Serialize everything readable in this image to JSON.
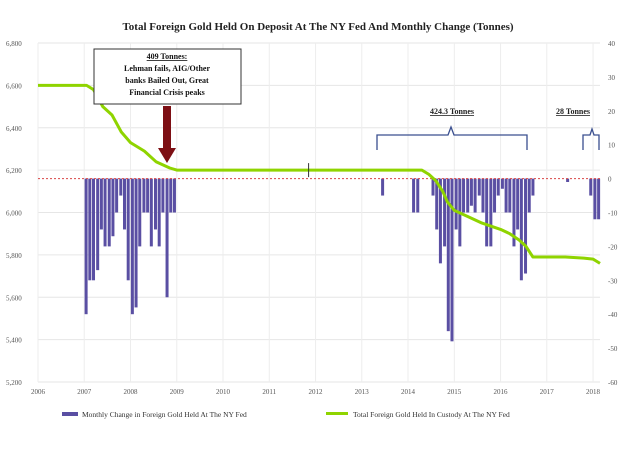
{
  "chart_data": {
    "type": "bar",
    "title": "Total Foreign Gold Held On Deposit At The NY Fed And Monthly Change (Tonnes)",
    "x_axis": {
      "range": [
        2006,
        2018.15
      ],
      "ticks": [
        "2006",
        "2007",
        "2008",
        "2009",
        "2010",
        "2011",
        "2012",
        "2013",
        "2014",
        "2015",
        "2016",
        "2017",
        "2018"
      ]
    },
    "left_axis": {
      "range": [
        5200,
        6800
      ],
      "ticks": [
        "5,200",
        "5,400",
        "5,600",
        "5,800",
        "6,000",
        "6,200",
        "6,400",
        "6,600",
        "6,800"
      ]
    },
    "right_axis": {
      "range": [
        -60,
        40
      ],
      "ticks": [
        "-60",
        "-50",
        "-40",
        "-30",
        "-20",
        "-10",
        "0",
        "10",
        "20",
        "30",
        "40"
      ]
    },
    "grid": true,
    "legend_position": "bottom",
    "series": [
      {
        "name": "Monthly Change in Foreign Gold Held At The NY Fed",
        "type": "bar",
        "axis": "right",
        "color": "#5a4fa3",
        "points": [
          [
            2007.04,
            -40
          ],
          [
            2007.12,
            -30
          ],
          [
            2007.2,
            -30
          ],
          [
            2007.29,
            -27
          ],
          [
            2007.37,
            -15
          ],
          [
            2007.45,
            -20
          ],
          [
            2007.54,
            -20
          ],
          [
            2007.62,
            -17
          ],
          [
            2007.7,
            -10
          ],
          [
            2007.79,
            -5
          ],
          [
            2007.87,
            -15
          ],
          [
            2007.95,
            -30
          ],
          [
            2008.04,
            -40
          ],
          [
            2008.12,
            -38
          ],
          [
            2008.2,
            -20
          ],
          [
            2008.29,
            -10
          ],
          [
            2008.37,
            -10
          ],
          [
            2008.45,
            -20
          ],
          [
            2008.54,
            -15
          ],
          [
            2008.62,
            -20
          ],
          [
            2008.7,
            -10
          ],
          [
            2008.79,
            -35
          ],
          [
            2008.87,
            -10
          ],
          [
            2008.95,
            -10
          ],
          [
            2013.45,
            -5
          ],
          [
            2014.12,
            -10
          ],
          [
            2014.21,
            -10
          ],
          [
            2014.54,
            -5
          ],
          [
            2014.62,
            -15
          ],
          [
            2014.7,
            -25
          ],
          [
            2014.79,
            -20
          ],
          [
            2014.87,
            -45
          ],
          [
            2014.95,
            -48
          ],
          [
            2015.04,
            -15
          ],
          [
            2015.12,
            -20
          ],
          [
            2015.2,
            -10
          ],
          [
            2015.29,
            -10
          ],
          [
            2015.37,
            -8
          ],
          [
            2015.45,
            -10
          ],
          [
            2015.54,
            -5
          ],
          [
            2015.62,
            -10
          ],
          [
            2015.7,
            -20
          ],
          [
            2015.79,
            -20
          ],
          [
            2015.87,
            -10
          ],
          [
            2015.95,
            -5
          ],
          [
            2016.04,
            -3
          ],
          [
            2016.12,
            -10
          ],
          [
            2016.2,
            -10
          ],
          [
            2016.29,
            -20
          ],
          [
            2016.37,
            -15
          ],
          [
            2016.45,
            -30
          ],
          [
            2016.54,
            -28
          ],
          [
            2016.62,
            -10
          ],
          [
            2016.7,
            -5
          ],
          [
            2017.45,
            -1
          ],
          [
            2017.95,
            -5
          ],
          [
            2018.04,
            -12
          ],
          [
            2018.12,
            -12
          ]
        ]
      },
      {
        "name": "Total Foreign Gold Held In Custody At The NY Fed",
        "type": "line",
        "axis": "left",
        "color": "#8fd400",
        "points": [
          [
            2006.0,
            6600
          ],
          [
            2007.05,
            6600
          ],
          [
            2007.2,
            6580
          ],
          [
            2007.4,
            6500
          ],
          [
            2007.6,
            6460
          ],
          [
            2007.8,
            6380
          ],
          [
            2008.0,
            6330
          ],
          [
            2008.3,
            6290
          ],
          [
            2008.55,
            6240
          ],
          [
            2008.85,
            6210
          ],
          [
            2009.0,
            6200
          ],
          [
            2014.3,
            6200
          ],
          [
            2014.45,
            6180
          ],
          [
            2014.6,
            6150
          ],
          [
            2014.75,
            6100
          ],
          [
            2014.85,
            6050
          ],
          [
            2015.0,
            6010
          ],
          [
            2015.3,
            5980
          ],
          [
            2015.6,
            5950
          ],
          [
            2016.0,
            5920
          ],
          [
            2016.2,
            5900
          ],
          [
            2016.4,
            5870
          ],
          [
            2016.55,
            5840
          ],
          [
            2016.7,
            5790
          ],
          [
            2017.4,
            5790
          ],
          [
            2017.8,
            5785
          ],
          [
            2018.0,
            5780
          ],
          [
            2018.15,
            5760
          ]
        ]
      }
    ],
    "annotations": {
      "lehman": {
        "heading": "409 Tonnes:",
        "lines": [
          "Lehman fails, AIG/Other",
          "banks Bailed Out, Great",
          "Financial Crisis peaks"
        ]
      },
      "brace1": "424.3 Tonnes",
      "brace2": "28 Tonnes"
    }
  }
}
